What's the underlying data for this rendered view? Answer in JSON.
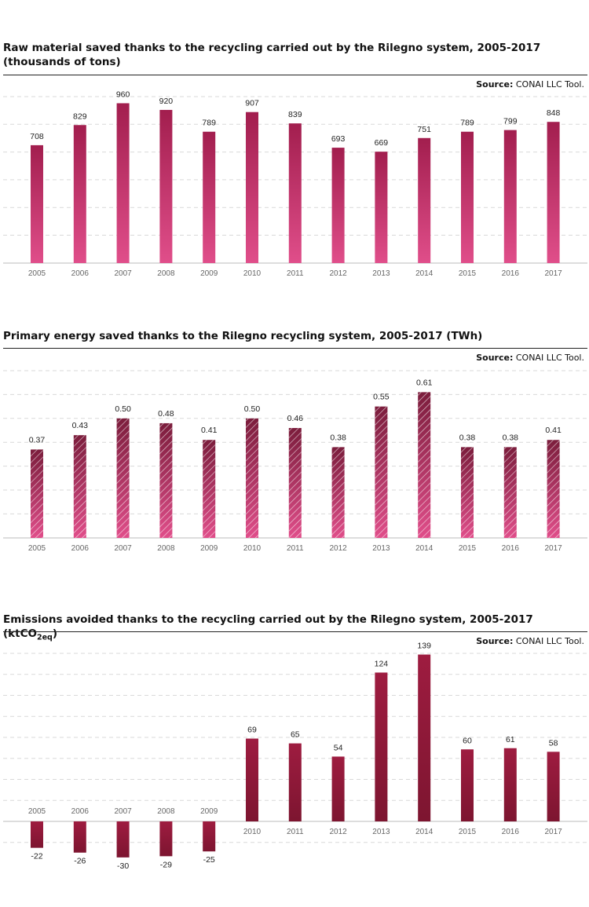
{
  "palette": {
    "chart1_bar_top": "#a21e4e",
    "chart1_bar_bottom": "#e04e8a",
    "chart2_bar_top": "#7b1d3c",
    "chart2_bar_bottom": "#e04e8a",
    "chart3_bar_top": "#9e1c40",
    "chart3_bar_bottom": "#7d1530",
    "gridline": "#d9d9d9",
    "axis": "#bbbbbb"
  },
  "charts": [
    {
      "title": "Raw material saved thanks to the recycling carried out by the Rilegno system, 2005-2017",
      "title_line2": "(thousands of tons)",
      "source_label": "Source:",
      "source_text": "CONAI LLC Tool."
    },
    {
      "title": "Primary energy saved thanks to the Rilegno recycling system, 2005-2017 (TWh)",
      "source_label": "Source:",
      "source_text": "CONAI LLC Tool."
    },
    {
      "title": "Emissions avoided thanks to the recycling carried out by the Rilegno system, 2005-2017 (ktCO",
      "title_sub": "2eq",
      "title_end": ")",
      "source_label": "Source:",
      "source_text": "CONAI LLC Tool."
    }
  ],
  "chart_data": [
    {
      "type": "bar",
      "categories": [
        "2005",
        "2006",
        "2007",
        "2008",
        "2009",
        "2010",
        "2011",
        "2012",
        "2013",
        "2014",
        "2015",
        "2016",
        "2017"
      ],
      "values": [
        708,
        829,
        960,
        920,
        789,
        907,
        839,
        693,
        669,
        751,
        789,
        799,
        848
      ],
      "value_labels": [
        "708",
        "829",
        "960",
        "920",
        "789",
        "907",
        "839",
        "693",
        "669",
        "751",
        "789",
        "799",
        "848"
      ],
      "ylim": [
        0,
        1000
      ],
      "grid": true,
      "style": "gradient"
    },
    {
      "type": "bar",
      "categories": [
        "2005",
        "2006",
        "2007",
        "2008",
        "2009",
        "2010",
        "2011",
        "2012",
        "2013",
        "2014",
        "2015",
        "2016",
        "2017"
      ],
      "values": [
        0.37,
        0.43,
        0.5,
        0.48,
        0.41,
        0.5,
        0.46,
        0.38,
        0.55,
        0.61,
        0.38,
        0.38,
        0.41
      ],
      "value_labels": [
        "0.37",
        "0.43",
        "0.50",
        "0.48",
        "0.41",
        "0.50",
        "0.46",
        "0.38",
        "0.55",
        "0.61",
        "0.38",
        "0.38",
        "0.41"
      ],
      "ylim": [
        0,
        0.7
      ],
      "grid": true,
      "style": "hatched"
    },
    {
      "type": "bar",
      "categories": [
        "2005",
        "2006",
        "2007",
        "2008",
        "2009",
        "2010",
        "2011",
        "2012",
        "2013",
        "2014",
        "2015",
        "2016",
        "2017"
      ],
      "values": [
        -22,
        -26,
        -30,
        -29,
        -25,
        69,
        65,
        54,
        124,
        139,
        60,
        61,
        58
      ],
      "value_labels": [
        "-22",
        "-26",
        "-30",
        "-29",
        "-25",
        "69",
        "65",
        "54",
        "124",
        "139",
        "60",
        "61",
        "58"
      ],
      "ylim": [
        -30,
        140
      ],
      "grid": true,
      "style": "solid"
    }
  ]
}
